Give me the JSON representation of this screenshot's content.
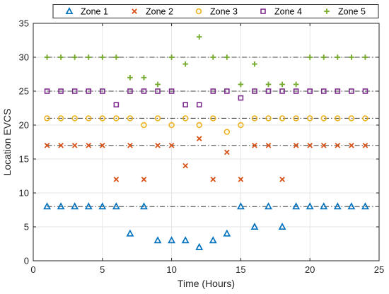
{
  "chart_data": {
    "type": "scatter",
    "title": "",
    "xlabel": "Time (Hours)",
    "ylabel": "Location EVCS",
    "xlim": [
      0,
      25
    ],
    "ylim": [
      0,
      35
    ],
    "xticks": [
      0,
      5,
      10,
      15,
      20,
      25
    ],
    "yticks": [
      0,
      5,
      10,
      15,
      20,
      25,
      30,
      35
    ],
    "grid": true,
    "legend_position": "top, outside plot, horizontal",
    "reference_lines": [
      8,
      17,
      21,
      25,
      30
    ],
    "reference_line_style": "dash-dot, dark gray",
    "series": [
      {
        "name": "Zone 1",
        "marker": "triangle",
        "color": "#0072BD",
        "x": [
          1,
          2,
          3,
          4,
          5,
          6,
          7,
          8,
          9,
          10,
          11,
          12,
          13,
          14,
          15,
          16,
          17,
          18,
          19,
          20,
          21,
          22,
          23,
          24
        ],
        "y": [
          8,
          8,
          8,
          8,
          8,
          8,
          4,
          8,
          3,
          3,
          3,
          2,
          3,
          4,
          8,
          5,
          8,
          5,
          8,
          8,
          8,
          8,
          8,
          8
        ]
      },
      {
        "name": "Zone 2",
        "marker": "x",
        "color": "#D95319",
        "x": [
          1,
          2,
          3,
          4,
          5,
          6,
          7,
          8,
          9,
          10,
          11,
          12,
          13,
          14,
          15,
          16,
          17,
          18,
          19,
          20,
          21,
          22,
          23,
          24
        ],
        "y": [
          17,
          17,
          17,
          17,
          17,
          12,
          17,
          12,
          17,
          17,
          14,
          18,
          12,
          16,
          12,
          17,
          17,
          12,
          17,
          17,
          17,
          17,
          17,
          17
        ]
      },
      {
        "name": "Zone 3",
        "marker": "circle",
        "color": "#EDB120",
        "x": [
          1,
          2,
          3,
          4,
          5,
          6,
          7,
          8,
          9,
          10,
          11,
          12,
          13,
          14,
          15,
          16,
          17,
          18,
          19,
          20,
          21,
          22,
          23,
          24
        ],
        "y": [
          21,
          21,
          21,
          21,
          21,
          21,
          21,
          20,
          21,
          20,
          21,
          20,
          21,
          19,
          20,
          21,
          21,
          21,
          21,
          21,
          21,
          21,
          21,
          21
        ]
      },
      {
        "name": "Zone 4",
        "marker": "square",
        "color": "#7E2F8E",
        "x": [
          1,
          2,
          3,
          4,
          5,
          6,
          7,
          8,
          9,
          10,
          11,
          12,
          13,
          14,
          15,
          16,
          17,
          18,
          19,
          20,
          21,
          22,
          23,
          24
        ],
        "y": [
          25,
          25,
          25,
          25,
          25,
          23,
          25,
          25,
          25,
          25,
          23,
          23,
          25,
          25,
          24,
          25,
          25,
          25,
          25,
          25,
          25,
          25,
          25,
          25
        ]
      },
      {
        "name": "Zone 5",
        "marker": "plus",
        "color": "#77AC30",
        "x": [
          1,
          2,
          3,
          4,
          5,
          6,
          7,
          8,
          9,
          10,
          11,
          12,
          13,
          14,
          15,
          16,
          17,
          18,
          19,
          20,
          21,
          22,
          23,
          24
        ],
        "y": [
          30,
          30,
          30,
          30,
          30,
          30,
          27,
          27,
          26,
          30,
          29,
          33,
          30,
          30,
          26,
          29,
          26,
          26,
          26,
          30,
          30,
          30,
          30,
          30
        ]
      }
    ]
  }
}
